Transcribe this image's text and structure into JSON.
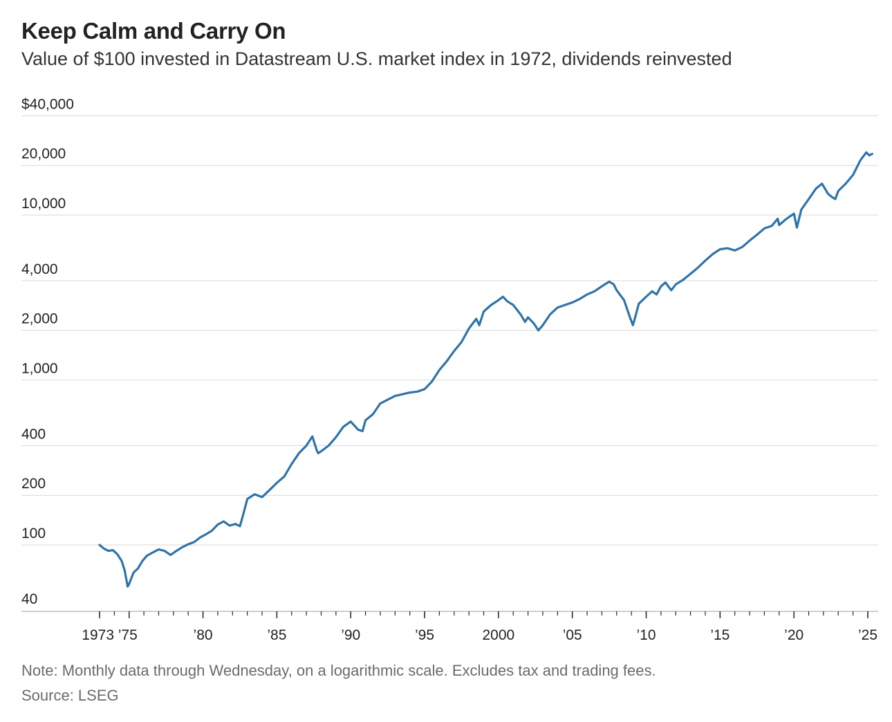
{
  "title": "Keep Calm and Carry On",
  "subtitle": "Value of $100 invested in Datastream U.S. market index in 1972, dividends reinvested",
  "note": "Note: Monthly data through Wednesday, on a logarithmic scale. Excludes tax and trading fees.",
  "source": "Source: LSEG",
  "colors": {
    "line": "#2f73a8",
    "grid": "#d9d9d9",
    "text": "#222222",
    "note": "#6b6b6b"
  },
  "chart_data": {
    "type": "line",
    "scale": "log",
    "title": "Keep Calm and Carry On",
    "ylabel": "",
    "xlabel": "",
    "xlim": [
      1973,
      2025.5
    ],
    "ylim": [
      30,
      40000
    ],
    "y_ticks": [
      {
        "value": 40000,
        "label": "$40,000"
      },
      {
        "value": 20000,
        "label": "20,000"
      },
      {
        "value": 10000,
        "label": "10,000"
      },
      {
        "value": 4000,
        "label": "4,000"
      },
      {
        "value": 2000,
        "label": "2,000"
      },
      {
        "value": 1000,
        "label": "1,000"
      },
      {
        "value": 400,
        "label": "400"
      },
      {
        "value": 200,
        "label": "200"
      },
      {
        "value": 100,
        "label": "100"
      },
      {
        "value": 40,
        "label": "40"
      }
    ],
    "x_ticks": [
      {
        "value": 1973,
        "label": "1973"
      },
      {
        "value": 1975,
        "label": "’75"
      },
      {
        "value": 1980,
        "label": "’80"
      },
      {
        "value": 1985,
        "label": "’85"
      },
      {
        "value": 1990,
        "label": "’90"
      },
      {
        "value": 1995,
        "label": "’95"
      },
      {
        "value": 2000,
        "label": "2000"
      },
      {
        "value": 2005,
        "label": "’05"
      },
      {
        "value": 2010,
        "label": "’10"
      },
      {
        "value": 2015,
        "label": "’15"
      },
      {
        "value": 2020,
        "label": "’20"
      },
      {
        "value": 2025,
        "label": "’25"
      }
    ],
    "series": [
      {
        "name": "Value of $100 invested",
        "x": [
          1973.0,
          1973.3,
          1973.6,
          1973.9,
          1974.2,
          1974.5,
          1974.7,
          1974.9,
          1975.0,
          1975.3,
          1975.6,
          1975.9,
          1976.2,
          1976.6,
          1977.0,
          1977.4,
          1977.8,
          1978.2,
          1978.6,
          1979.0,
          1979.4,
          1979.8,
          1980.2,
          1980.6,
          1981.0,
          1981.4,
          1981.8,
          1982.2,
          1982.5,
          1982.7,
          1983.0,
          1983.5,
          1984.0,
          1984.5,
          1985.0,
          1985.5,
          1986.0,
          1986.5,
          1987.0,
          1987.4,
          1987.7,
          1987.8,
          1988.0,
          1988.5,
          1989.0,
          1989.5,
          1990.0,
          1990.5,
          1990.8,
          1991.0,
          1991.5,
          1992.0,
          1992.5,
          1993.0,
          1993.5,
          1994.0,
          1994.5,
          1995.0,
          1995.5,
          1996.0,
          1996.5,
          1997.0,
          1997.5,
          1998.0,
          1998.5,
          1998.7,
          1999.0,
          1999.5,
          2000.0,
          2000.3,
          2000.6,
          2001.0,
          2001.5,
          2001.8,
          2002.0,
          2002.4,
          2002.7,
          2003.0,
          2003.5,
          2004.0,
          2004.5,
          2005.0,
          2005.5,
          2006.0,
          2006.5,
          2007.0,
          2007.5,
          2007.8,
          2008.0,
          2008.5,
          2008.9,
          2009.1,
          2009.2,
          2009.5,
          2010.0,
          2010.4,
          2010.7,
          2011.0,
          2011.3,
          2011.7,
          2012.0,
          2012.5,
          2013.0,
          2013.5,
          2014.0,
          2014.5,
          2015.0,
          2015.5,
          2016.0,
          2016.5,
          2017.0,
          2017.5,
          2018.0,
          2018.5,
          2018.9,
          2019.0,
          2019.5,
          2020.0,
          2020.2,
          2020.5,
          2021.0,
          2021.5,
          2021.9,
          2022.3,
          2022.5,
          2022.8,
          2023.0,
          2023.5,
          2024.0,
          2024.5,
          2024.9,
          2025.1,
          2025.3
        ],
        "values": [
          100,
          95,
          92,
          93,
          88,
          80,
          70,
          56,
          58,
          68,
          72,
          80,
          86,
          90,
          94,
          92,
          87,
          92,
          97,
          101,
          104,
          111,
          116,
          122,
          133,
          139,
          131,
          134,
          130,
          150,
          190,
          203,
          195,
          215,
          238,
          260,
          310,
          360,
          400,
          455,
          375,
          360,
          370,
          400,
          450,
          520,
          560,
          500,
          490,
          570,
          620,
          720,
          760,
          800,
          820,
          840,
          850,
          880,
          980,
          1150,
          1300,
          1500,
          1700,
          2050,
          2350,
          2150,
          2600,
          2850,
          3050,
          3200,
          3000,
          2850,
          2500,
          2250,
          2400,
          2200,
          2000,
          2150,
          2500,
          2750,
          2850,
          2950,
          3100,
          3300,
          3450,
          3700,
          3950,
          3800,
          3500,
          3050,
          2400,
          2150,
          2300,
          2900,
          3200,
          3450,
          3300,
          3700,
          3900,
          3500,
          3800,
          4050,
          4400,
          4800,
          5300,
          5800,
          6200,
          6300,
          6100,
          6400,
          7000,
          7600,
          8300,
          8600,
          9500,
          8700,
          9500,
          10200,
          8400,
          10800,
          12500,
          14500,
          15500,
          13500,
          13000,
          12500,
          14000,
          15500,
          17500,
          21500,
          24000,
          23000,
          23500
        ]
      }
    ]
  }
}
